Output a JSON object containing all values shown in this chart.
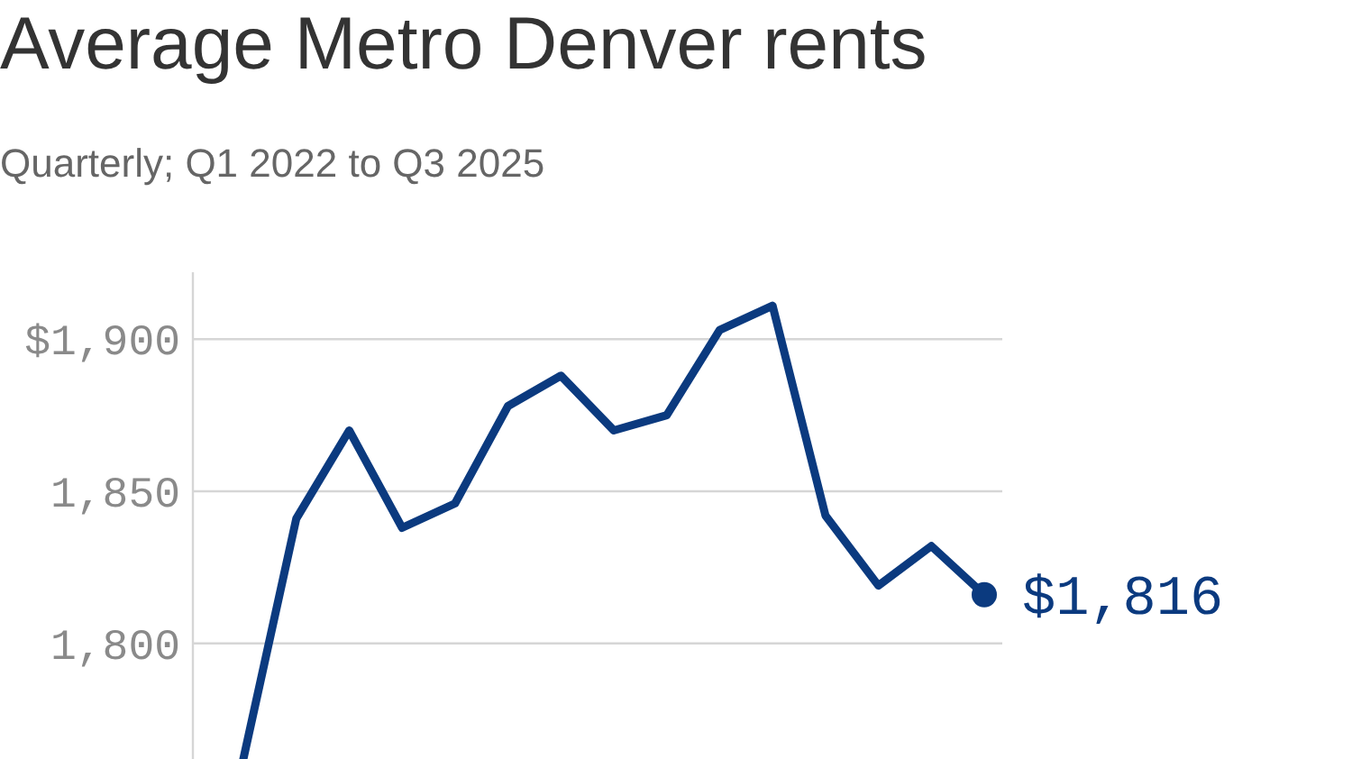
{
  "chart_data": {
    "type": "line",
    "title": "Average Metro Denver rents",
    "subtitle": "Quarterly; Q1 2022 to Q3 2025",
    "categories": [
      null,
      null,
      null,
      null,
      null,
      null,
      null,
      null,
      null,
      null,
      null,
      null,
      null,
      null,
      null
    ],
    "values": [
      1762,
      1841,
      1870,
      1838,
      1846,
      1878,
      1888,
      1870,
      1875,
      1903,
      1911,
      1842,
      1819,
      1832,
      1816
    ],
    "value_labels": [
      null,
      null,
      null,
      null,
      null,
      null,
      null,
      null,
      null,
      null,
      null,
      null,
      null,
      null,
      "$1,816"
    ],
    "color": "#0b3a7f",
    "ylim": [
      1762,
      1922
    ],
    "yticks": [
      {
        "value": 1800,
        "label": "1,800"
      },
      {
        "value": 1850,
        "label": "1,850"
      },
      {
        "value": 1900,
        "label": "$1,900"
      }
    ],
    "grid": "y",
    "tick_labels": "y"
  }
}
